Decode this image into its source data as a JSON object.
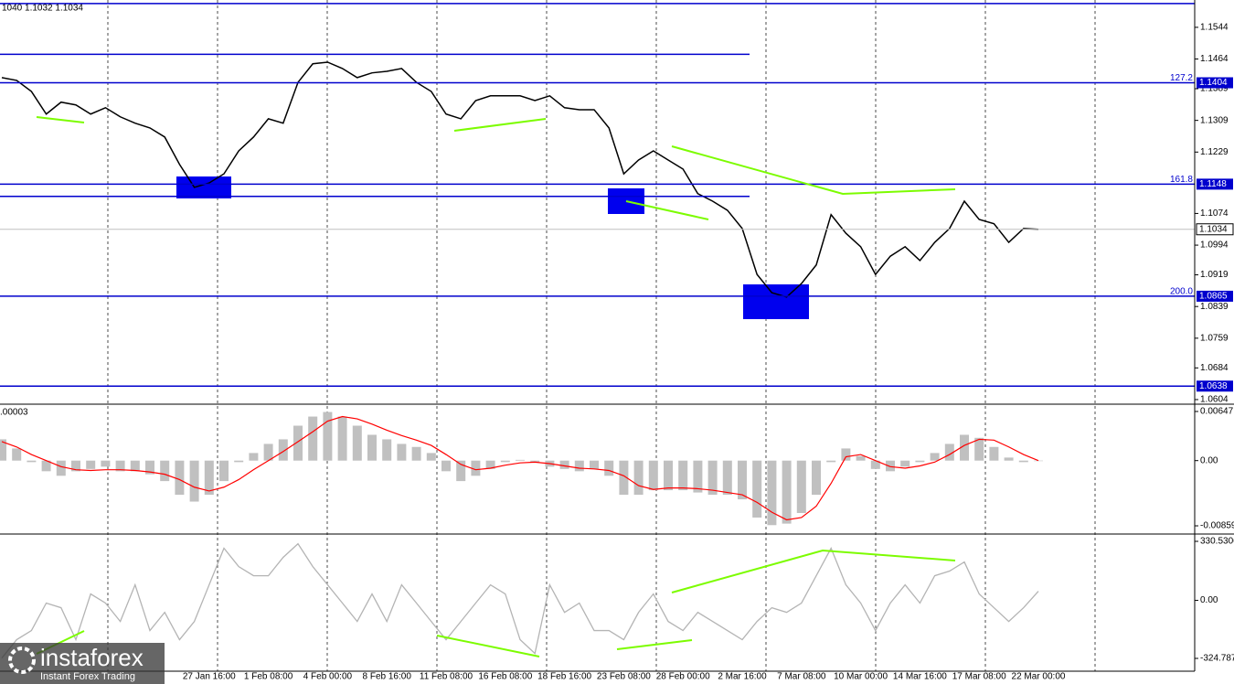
{
  "chart_data": [
    {
      "type": "line",
      "title": "1040 1.1032 1.1034",
      "color": "#000000",
      "categories": [
        null,
        null,
        null,
        null,
        null,
        null,
        null,
        null,
        null,
        null,
        null,
        null,
        null,
        null,
        "27 Jan 16:00",
        null,
        null,
        null,
        "1 Feb 08:00",
        null,
        null,
        null,
        "4 Feb 00:00",
        null,
        null,
        null,
        "8 Feb 16:00",
        null,
        null,
        null,
        "11 Feb 08:00",
        null,
        null,
        null,
        "16 Feb 08:00",
        null,
        null,
        null,
        "18 Feb 16:00",
        null,
        null,
        null,
        "23 Feb 08:00",
        null,
        null,
        null,
        "28 Feb 00:00",
        null,
        null,
        null,
        "2 Mar 16:00",
        null,
        null,
        null,
        "7 Mar 08:00",
        null,
        null,
        null,
        "10 Mar 00:00",
        null,
        null,
        null,
        "14 Mar 16:00",
        null,
        null,
        null,
        "17 Mar 08:00",
        null,
        null,
        null,
        "22 Mar 00:00"
      ],
      "values": [
        1.1417,
        1.141,
        1.1382,
        1.1325,
        1.1355,
        1.1348,
        1.1325,
        1.1341,
        1.1318,
        1.1302,
        1.129,
        1.1267,
        1.1198,
        1.114,
        1.1151,
        1.1174,
        1.1232,
        1.1267,
        1.1313,
        1.1302,
        1.1405,
        1.1452,
        1.1456,
        1.144,
        1.1417,
        1.1429,
        1.1433,
        1.144,
        1.1405,
        1.1382,
        1.1325,
        1.1313,
        1.1359,
        1.1371,
        1.1371,
        1.1371,
        1.1359,
        1.1371,
        1.1341,
        1.1336,
        1.1336,
        1.129,
        1.1174,
        1.1209,
        1.1232,
        1.1209,
        1.1186,
        1.1124,
        1.1105,
        1.1082,
        1.1036,
        1.092,
        1.0874,
        1.0863,
        1.0897,
        1.0944,
        1.1071,
        1.1024,
        1.099,
        1.092,
        1.0966,
        1.099,
        1.0955,
        1.1001,
        1.1036,
        1.1105,
        1.1059,
        1.1048,
        1.1001,
        1.1036,
        1.1034
      ],
      "ylim": [
        1.0597,
        1.1613
      ],
      "yticks": [
        1.1544,
        1.1464,
        1.1389,
        1.1309,
        1.1229,
        1.1074,
        1.0994,
        1.0919,
        1.0839,
        1.0759,
        1.0684,
        1.0604
      ],
      "levels": [
        {
          "value": 1.1404,
          "label": "127.2"
        },
        {
          "value": 1.1148,
          "label": "161.8"
        },
        {
          "value": 1.0865,
          "label": "200.0"
        },
        {
          "value": 1.0638
        }
      ],
      "extra_levels": [
        1.1604,
        1.1476,
        1.1117
      ],
      "level_color": "#0000cd",
      "current_price": 1.1034
    },
    {
      "type": "bar",
      "title": ".00003",
      "color": "#c0c0c0",
      "values": [
        0.0028,
        0.0016,
        -0.0002,
        -0.0014,
        -0.002,
        -0.0014,
        -0.0011,
        -0.0008,
        -0.0014,
        -0.0014,
        -0.0018,
        -0.0027,
        -0.0045,
        -0.0054,
        -0.0045,
        -0.0027,
        -0.0002,
        0.001,
        0.0022,
        0.0028,
        0.0046,
        0.0058,
        0.0064,
        0.0058,
        0.0046,
        0.0034,
        0.0028,
        0.0022,
        0.0018,
        0.001,
        -0.0014,
        -0.0027,
        -0.002,
        -0.0011,
        -0.0002,
        0.0001,
        -0.0002,
        -0.0008,
        -0.0011,
        -0.0014,
        -0.0011,
        -0.002,
        -0.0045,
        -0.0045,
        -0.0039,
        -0.0039,
        -0.0039,
        -0.0042,
        -0.0045,
        -0.0045,
        -0.0051,
        -0.0075,
        -0.0085,
        -0.0083,
        -0.0069,
        -0.0045,
        -0.0002,
        0.0016,
        0.0006,
        -0.0011,
        -0.0014,
        -0.0008,
        -0.0002,
        0.001,
        0.0022,
        0.0034,
        0.003,
        0.0018,
        0.0004,
        -0.0002,
        0
      ],
      "signal": {
        "color": "#ff0000",
        "values": [
          0.0025,
          0.0018,
          0.0008,
          0,
          -0.0008,
          -0.0012,
          -0.0013,
          -0.0012,
          -0.0012,
          -0.0013,
          -0.0015,
          -0.0018,
          -0.0025,
          -0.0035,
          -0.004,
          -0.0035,
          -0.0025,
          -0.0012,
          0,
          0.0012,
          0.0025,
          0.0038,
          0.0052,
          0.0058,
          0.0055,
          0.0048,
          0.004,
          0.0033,
          0.0027,
          0.002,
          0.0008,
          -0.0005,
          -0.0012,
          -0.001,
          -0.0006,
          -0.0003,
          -0.0002,
          -0.0004,
          -0.0007,
          -0.001,
          -0.0011,
          -0.0013,
          -0.002,
          -0.0033,
          -0.0038,
          -0.0036,
          -0.0036,
          -0.0037,
          -0.0039,
          -0.0042,
          -0.0045,
          -0.0055,
          -0.0068,
          -0.0078,
          -0.0075,
          -0.006,
          -0.003,
          0.0005,
          0.0008,
          0,
          -0.0008,
          -0.001,
          -0.0007,
          -0.0002,
          0.0008,
          0.002,
          0.0028,
          0.0027,
          0.0018,
          0.0008,
          0
        ]
      },
      "ylim": [
        -0.00943,
        0.00719
      ],
      "yticks": [
        0.00647,
        {
          "value": 0,
          "label": "0.00"
        },
        -0.00859
      ]
    },
    {
      "type": "line",
      "color": "#b4b4b4",
      "values": [
        -323,
        -220,
        -169,
        -15,
        -41,
        -220,
        36,
        -15,
        -118,
        87,
        -169,
        -67,
        -220,
        -118,
        87,
        292,
        189,
        138,
        138,
        241,
        317,
        189,
        87,
        -15,
        -118,
        36,
        -118,
        87,
        -15,
        -118,
        -220,
        -118,
        -15,
        87,
        36,
        -220,
        -297,
        87,
        -67,
        -15,
        -169,
        -169,
        -220,
        -67,
        36,
        -118,
        -169,
        -67,
        -118,
        -169,
        -220,
        -118,
        -41,
        -67,
        -15,
        138,
        292,
        87,
        -15,
        -169,
        -15,
        87,
        -15,
        138,
        164,
        215,
        36,
        -41,
        -118,
        -41,
        51
      ],
      "ylim": [
        -386.2,
        361.2
      ],
      "yticks": [
        330.5306,
        {
          "value": 0,
          "label": "0.00"
        },
        -324.7876
      ]
    }
  ],
  "watermark": {
    "name": "instaforex",
    "tagline": "Instant Forex Trading"
  }
}
